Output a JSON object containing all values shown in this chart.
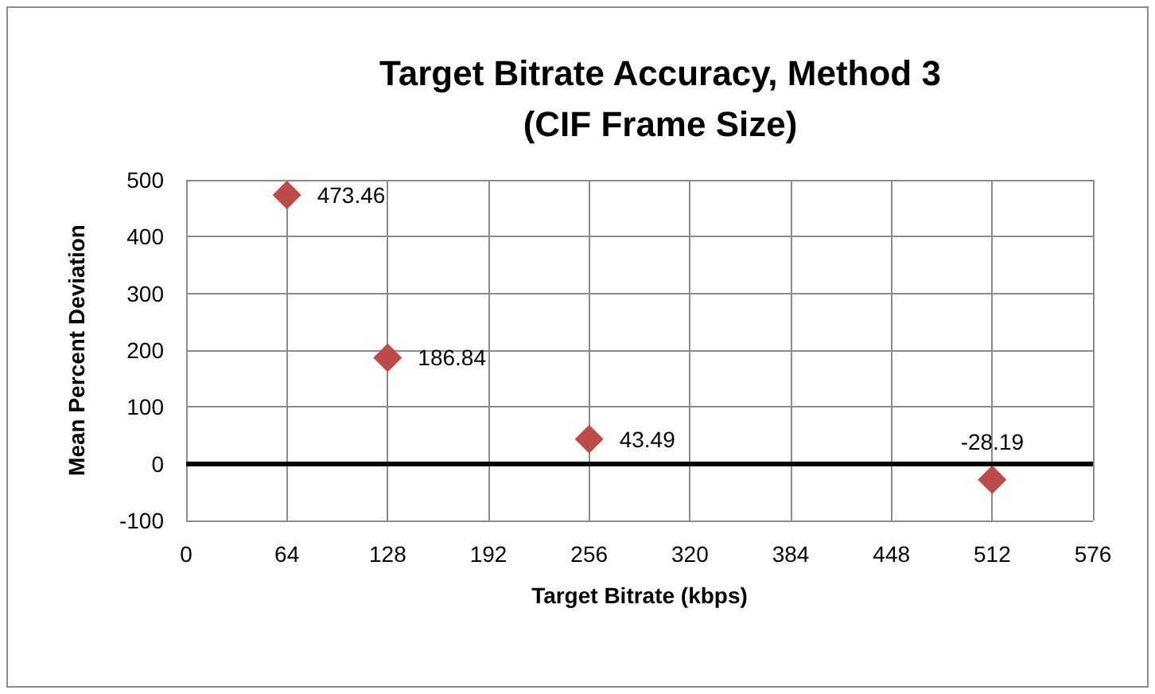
{
  "chart_data": {
    "type": "scatter",
    "title": "Target Bitrate Accuracy, Method 3\n(CIF Frame Size)",
    "xlabel": "Target Bitrate (kbps)",
    "ylabel": "Mean Percent Deviation",
    "x": [
      64,
      128,
      256,
      512
    ],
    "series": [
      {
        "color": "#be4b48",
        "values": [
          473.46,
          186.84,
          43.49,
          -28.19
        ]
      }
    ],
    "xlim": [
      0,
      576
    ],
    "xticks": [
      0,
      64,
      128,
      192,
      256,
      320,
      384,
      448,
      512,
      576
    ],
    "ylim": [
      -100,
      500
    ],
    "yticks": [
      -100,
      0,
      100,
      200,
      300,
      400,
      500
    ],
    "grid": true,
    "marker": "diamond",
    "data_labels": true,
    "ref_lines": [
      {
        "axis": "y",
        "value": 0,
        "color": "#000000"
      }
    ]
  }
}
